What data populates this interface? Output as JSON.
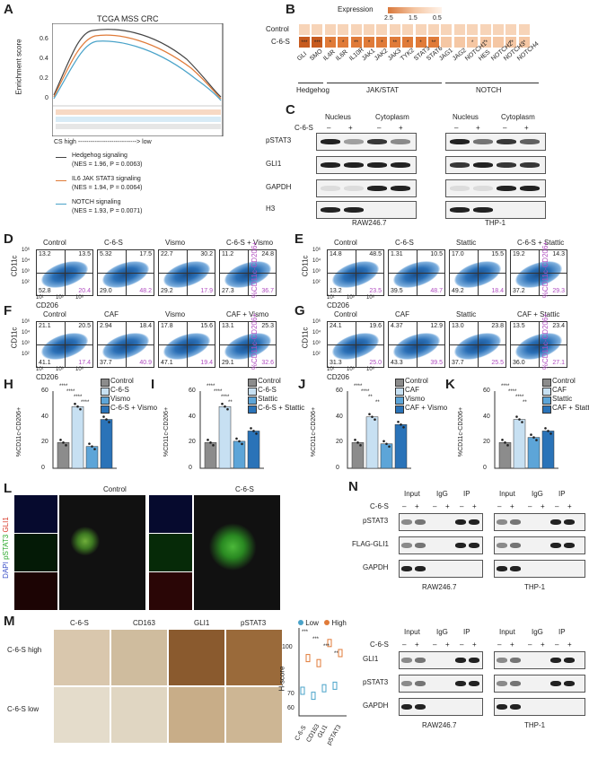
{
  "panels": {
    "A": {
      "letter": "A",
      "title": "TCGA MSS CRC",
      "ylabel": "Enrichment score",
      "yticks": [
        "0.6",
        "0.4",
        "0.2",
        "0"
      ],
      "xlabel": "CS high ----------------------------> low",
      "legend": [
        {
          "name": "Hedgehog signaling",
          "stats": "(NES = 1.96, P = 0.0063)",
          "color": "#444444"
        },
        {
          "name": "IL6 JAK STAT3 signaling",
          "stats": "(NES = 1.94, P = 0.0064)",
          "color": "#e07b39"
        },
        {
          "name": "NOTCH signaling",
          "stats": "(NES = 1.93, P = 0.0071)",
          "color": "#4aa3c9"
        }
      ]
    },
    "B": {
      "letter": "B",
      "legend_title": "Expression",
      "legend_ticks": [
        "2.5",
        "1.5",
        "0.5"
      ],
      "rows": [
        "Control",
        "C-6-S"
      ],
      "genes": [
        "GLI",
        "SMO",
        "IL4R",
        "IL6R",
        "IL10R",
        "JAK1",
        "JAK2",
        "JAK3",
        "TYK2",
        "STAT3",
        "STAT6",
        "JAG1",
        "JAG2",
        "NOTCH1",
        "HES",
        "NOTCH2",
        "NOTCH3",
        "NOTCH4"
      ],
      "stars": [
        "***",
        "***",
        "*",
        "*",
        "**",
        "*",
        "*",
        "**",
        "*",
        "*",
        "**",
        "",
        "",
        "*",
        "**",
        "",
        "**",
        "*"
      ],
      "groups": [
        "Hedgehog",
        "JAK/STAT",
        "NOTCH"
      ]
    },
    "C": {
      "letter": "C",
      "fractions": [
        "Nucleus",
        "Cytoplasm",
        "Nucleus",
        "Cytoplasm"
      ],
      "treatment": "C-6-S",
      "signs": [
        "–",
        "+",
        "–",
        "+",
        "–",
        "+",
        "–",
        "+"
      ],
      "proteins": [
        "pSTAT3",
        "GLI1",
        "GAPDH",
        "H3"
      ],
      "cells": [
        "RAW246.7",
        "THP-1"
      ]
    },
    "D": {
      "letter": "D",
      "conditions": [
        "Control",
        "C-6-S",
        "Vismo",
        "C-6-S + Vismo"
      ],
      "quadrants": [
        [
          "13.2",
          "13.5",
          "52.8",
          "20.4"
        ],
        [
          "5.32",
          "17.5",
          "29.0",
          "48.2"
        ],
        [
          "22.7",
          "30.2",
          "29.2",
          "17.9"
        ],
        [
          "11.2",
          "24.8",
          "27.3",
          "36.7"
        ]
      ],
      "side": "%CD11c-CD206+"
    },
    "E": {
      "letter": "E",
      "conditions": [
        "Control",
        "C-6-S",
        "Stattic",
        "C-6-S + Stattic"
      ],
      "quadrants": [
        [
          "14.8",
          "48.5",
          "13.2",
          "23.5"
        ],
        [
          "1.31",
          "10.5",
          "39.5",
          "48.7"
        ],
        [
          "17.0",
          "15.5",
          "49.2",
          "18.4"
        ],
        [
          "19.2",
          "14.3",
          "37.2",
          "29.3"
        ]
      ],
      "side": "%CD11c-CD206+"
    },
    "F": {
      "letter": "F",
      "conditions": [
        "Control",
        "CAF",
        "Vismo",
        "CAF + Vismo"
      ],
      "quadrants": [
        [
          "21.1",
          "20.5",
          "41.1",
          "17.4"
        ],
        [
          "2.94",
          "18.4",
          "37.7",
          "40.9"
        ],
        [
          "17.8",
          "15.6",
          "47.1",
          "19.4"
        ],
        [
          "13.1",
          "25.3",
          "29.1",
          "32.6"
        ]
      ],
      "side": "%CD11c-CD206+"
    },
    "G": {
      "letter": "G",
      "conditions": [
        "Control",
        "CAF",
        "Stattic",
        "CAF + Stattic"
      ],
      "quadrants": [
        [
          "24.1",
          "19.6",
          "31.3",
          "25.0"
        ],
        [
          "4.37",
          "12.9",
          "43.3",
          "39.5"
        ],
        [
          "13.0",
          "23.8",
          "37.7",
          "25.5"
        ],
        [
          "13.5",
          "23.4",
          "36.0",
          "27.1"
        ]
      ],
      "side": "%CD11c-CD206+"
    },
    "facs_axes": {
      "y": "CD11c",
      "x": "CD206",
      "yticks": [
        "10⁶",
        "10⁴",
        "10³",
        "10²"
      ],
      "xticks": [
        "10¹",
        "10³",
        "10⁶"
      ]
    },
    "H": {
      "letter": "H",
      "ylabel": "%CD11c-CD206+",
      "legend": [
        "Control",
        "C-6-S",
        "Vismo",
        "C-6-S + Vismo"
      ],
      "values": [
        20,
        48,
        17,
        38
      ],
      "ylim": [
        0,
        60
      ],
      "yticks": [
        "60",
        "40",
        "20",
        "0"
      ],
      "sig": [
        "****",
        "****",
        "****",
        "****"
      ]
    },
    "I": {
      "letter": "I",
      "ylabel": "%CD11c-CD206+",
      "legend": [
        "Control",
        "C-6-S",
        "Stattic",
        "C-6-S + Stattic"
      ],
      "values": [
        20,
        48,
        21,
        29
      ],
      "ylim": [
        0,
        60
      ],
      "yticks": [
        "60",
        "40",
        "20",
        "0"
      ],
      "sig": [
        "****",
        "****",
        "****",
        "**"
      ]
    },
    "J": {
      "letter": "J",
      "ylabel": "%CD11c-CD206+",
      "legend": [
        "Control",
        "CAF",
        "Vismo",
        "CAF + Vismo"
      ],
      "values": [
        20,
        40,
        19,
        34
      ],
      "ylim": [
        0,
        60
      ],
      "yticks": [
        "60",
        "40",
        "20",
        "0"
      ],
      "sig": [
        "****",
        "****",
        "**",
        "**"
      ]
    },
    "K": {
      "letter": "K",
      "ylabel": "%CD11c-CD206+",
      "legend": [
        "Control",
        "CAF",
        "Stattic",
        "CAF + Stattic"
      ],
      "values": [
        20,
        38,
        24,
        29
      ],
      "ylim": [
        0,
        60
      ],
      "yticks": [
        "60",
        "40",
        "20",
        "0"
      ],
      "sig": [
        "****",
        "****",
        "****",
        "**"
      ]
    },
    "bar_colors": [
      "#8c8c8c",
      "#c7e0f2",
      "#5da5d8",
      "#2a73b8"
    ],
    "L": {
      "letter": "L",
      "conditions": [
        "Control",
        "C-6-S"
      ],
      "channels": [
        "DAPI",
        "pSTAT3",
        "GLI1"
      ]
    },
    "M": {
      "letter": "M",
      "stains": [
        "C-6-S",
        "CD163",
        "GLI1",
        "pSTAT3"
      ],
      "groups": [
        "C-6-S high",
        "C-6-S low"
      ],
      "ylabel": "H-score",
      "legend": [
        "Low",
        "High"
      ],
      "yticks": [
        "100",
        "70",
        "60"
      ],
      "xcats": [
        "C-6-S",
        "CD163",
        "GLI1",
        "pSTAT3"
      ],
      "sig": [
        "***",
        "***",
        "***",
        "**"
      ]
    },
    "N": {
      "letter": "N",
      "columns": [
        "Input",
        "IgG",
        "IP",
        "Input",
        "IgG",
        "IP"
      ],
      "treatment": "C-6-S",
      "signs": [
        "–",
        "+",
        "–",
        "+",
        "–",
        "+",
        "–",
        "+",
        "–",
        "+",
        "–",
        "+"
      ],
      "top_proteins": [
        "pSTAT3",
        "FLAG-GLI1",
        "GAPDH"
      ],
      "bottom_proteins": [
        "GLI1",
        "pSTAT3",
        "GAPDH"
      ],
      "cells": [
        "RAW246.7",
        "THP-1"
      ]
    }
  }
}
